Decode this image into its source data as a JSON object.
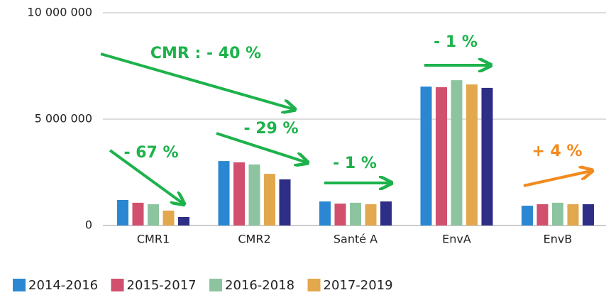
{
  "chart_data": {
    "type": "bar",
    "categories": [
      "CMR1",
      "CMR2",
      "Santé A",
      "EnvA",
      "EnvB"
    ],
    "series": [
      {
        "name": "2014-2016",
        "color": "#2b87d1",
        "values": [
          1200000,
          3030000,
          1130000,
          6530000,
          930000
        ]
      },
      {
        "name": "2015-2017",
        "color": "#d0506e",
        "values": [
          1070000,
          2970000,
          1030000,
          6500000,
          1000000
        ]
      },
      {
        "name": "2016-2018",
        "color": "#8cc4a0",
        "values": [
          1000000,
          2870000,
          1070000,
          6830000,
          1070000
        ]
      },
      {
        "name": "2017-2019",
        "color": "#e3a84d",
        "values": [
          700000,
          2430000,
          1000000,
          6630000,
          1000000
        ]
      },
      {
        "color": "#2e2e86",
        "values": [
          400000,
          2170000,
          1130000,
          6470000,
          1000000
        ]
      }
    ],
    "ylim": [
      0,
      10000000
    ],
    "yticks": [
      0,
      {
        "value": 5000000,
        "label": "5 000 000"
      },
      {
        "value": 10000000,
        "label": "10 000 000"
      }
    ],
    "grid": true,
    "annotations": [
      {
        "text": "CMR : - 40 %",
        "color": "#1db24b"
      },
      {
        "text": "- 29 %",
        "color": "#1db24b"
      },
      {
        "text": "- 67 %",
        "color": "#1db24b"
      },
      {
        "text": "- 1 %",
        "color": "#1db24b"
      },
      {
        "text": "- 1 %",
        "color": "#1db24b"
      },
      {
        "text": "+ 4 %",
        "color": "#f28a1e"
      }
    ]
  }
}
